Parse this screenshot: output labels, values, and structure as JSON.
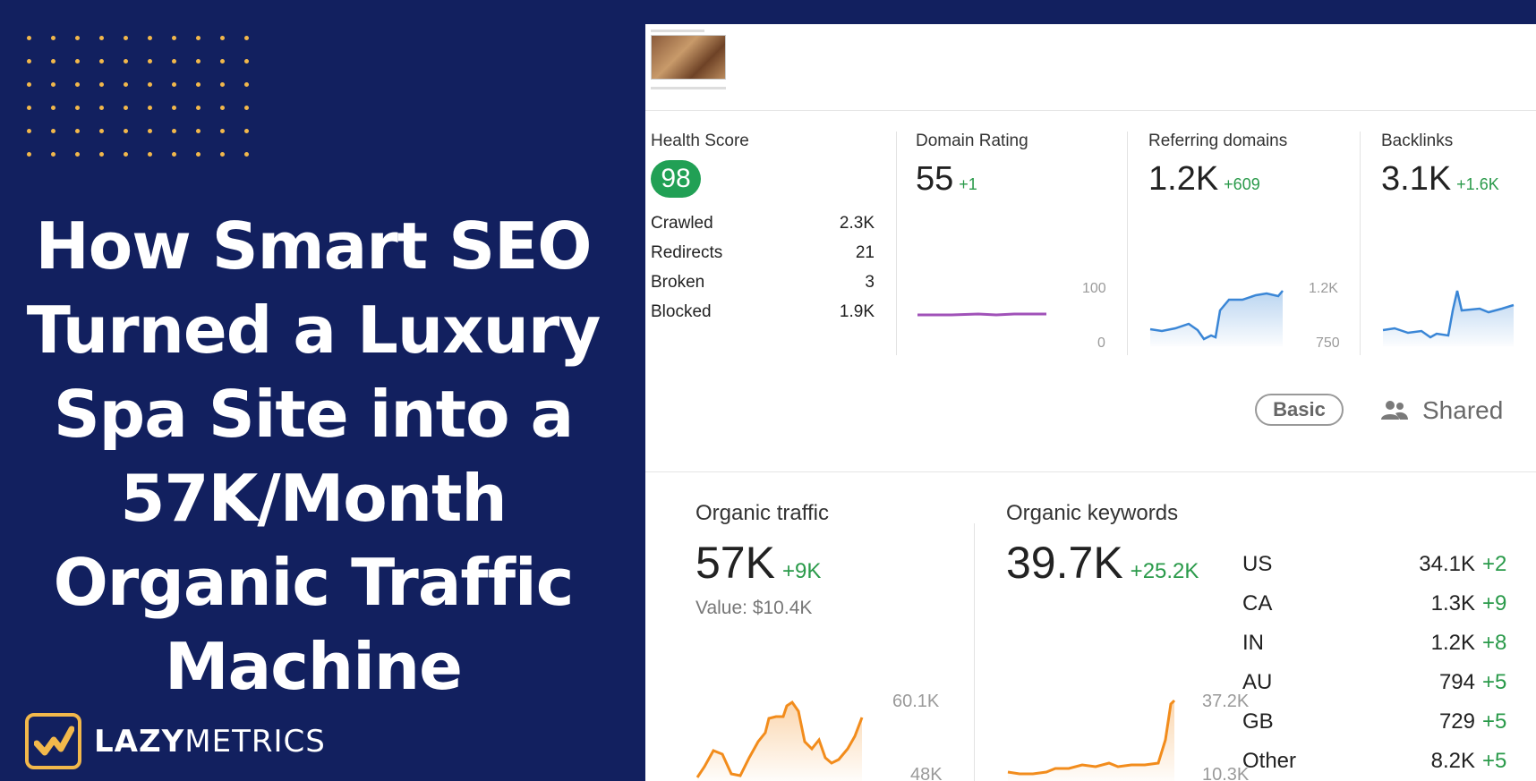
{
  "headline": {
    "lines": [
      "How Smart SEO",
      "Turned a Luxury",
      "Spa Site into a",
      "57K/Month",
      "Organic Traffic",
      "Machine"
    ]
  },
  "logo": {
    "bold": "LAZY",
    "light": "METRICS",
    "icon": "chart-check-icon"
  },
  "colors": {
    "navy": "#12205f",
    "gold": "#f2b84b",
    "green": "#21a055",
    "blue_line": "#3a86d6",
    "purple_line": "#a052b8",
    "orange_line": "#f28c1c"
  },
  "metrics": {
    "health": {
      "title": "Health Score",
      "score": "98",
      "rows": [
        {
          "label": "Crawled",
          "value": "2.3K"
        },
        {
          "label": "Redirects",
          "value": "21"
        },
        {
          "label": "Broken",
          "value": "3"
        },
        {
          "label": "Blocked",
          "value": "1.9K"
        }
      ]
    },
    "domain_rating": {
      "title": "Domain Rating",
      "value": "55",
      "delta": "+1",
      "axis_top": "100",
      "axis_bottom": "0"
    },
    "referring_domains": {
      "title": "Referring domains",
      "value": "1.2K",
      "delta": "+609",
      "axis_top": "1.2K",
      "axis_bottom": "750"
    },
    "backlinks": {
      "title": "Backlinks",
      "value": "3.1K",
      "delta": "+1.6K"
    }
  },
  "badges": {
    "plan": "Basic",
    "shared": "Shared",
    "shared_icon": "users-icon"
  },
  "organic_traffic": {
    "title": "Organic traffic",
    "value": "57K",
    "delta": "+9K",
    "value_line": "Value: $10.4K",
    "axis_top": "60.1K",
    "axis_bottom": "48K"
  },
  "organic_keywords": {
    "title": "Organic keywords",
    "value": "39.7K",
    "delta": "+25.2K",
    "axis_top": "37.2K",
    "axis_bottom": "10.3K",
    "countries": [
      {
        "code": "US",
        "value": "34.1K",
        "delta": "+2"
      },
      {
        "code": "CA",
        "value": "1.3K",
        "delta": "+9"
      },
      {
        "code": "IN",
        "value": "1.2K",
        "delta": "+8"
      },
      {
        "code": "AU",
        "value": "794",
        "delta": "+5"
      },
      {
        "code": "GB",
        "value": "729",
        "delta": "+5"
      },
      {
        "code": "Other",
        "value": "8.2K",
        "delta": "+5"
      }
    ]
  }
}
